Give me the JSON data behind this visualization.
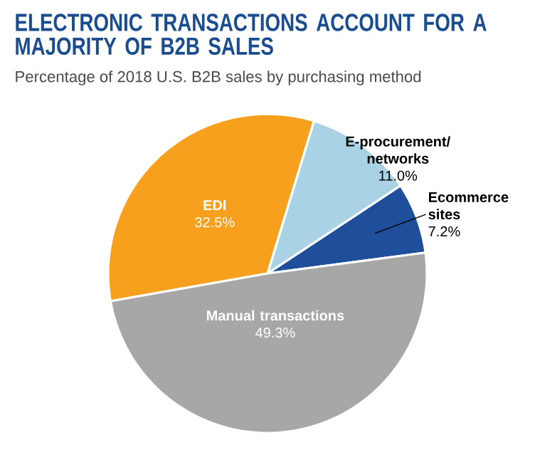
{
  "chart_data": {
    "type": "pie",
    "title": "ELECTRONIC TRANSACTIONS ACCOUNT FOR A MAJORITY OF B2B SALES",
    "subtitle": "Percentage of 2018 U.S. B2B sales by purchasing method",
    "categories": [
      "Ecommerce sites",
      "E-procurement/ networks",
      "EDI",
      "Manual transactions"
    ],
    "values": [
      7.2,
      11.0,
      32.5,
      49.3
    ],
    "colors": [
      "#1f4e9b",
      "#a9d3e5",
      "#f6a01e",
      "#a7a7a7"
    ],
    "value_labels": [
      "7.2%",
      "11.0%",
      "32.5%",
      "49.3%"
    ]
  }
}
